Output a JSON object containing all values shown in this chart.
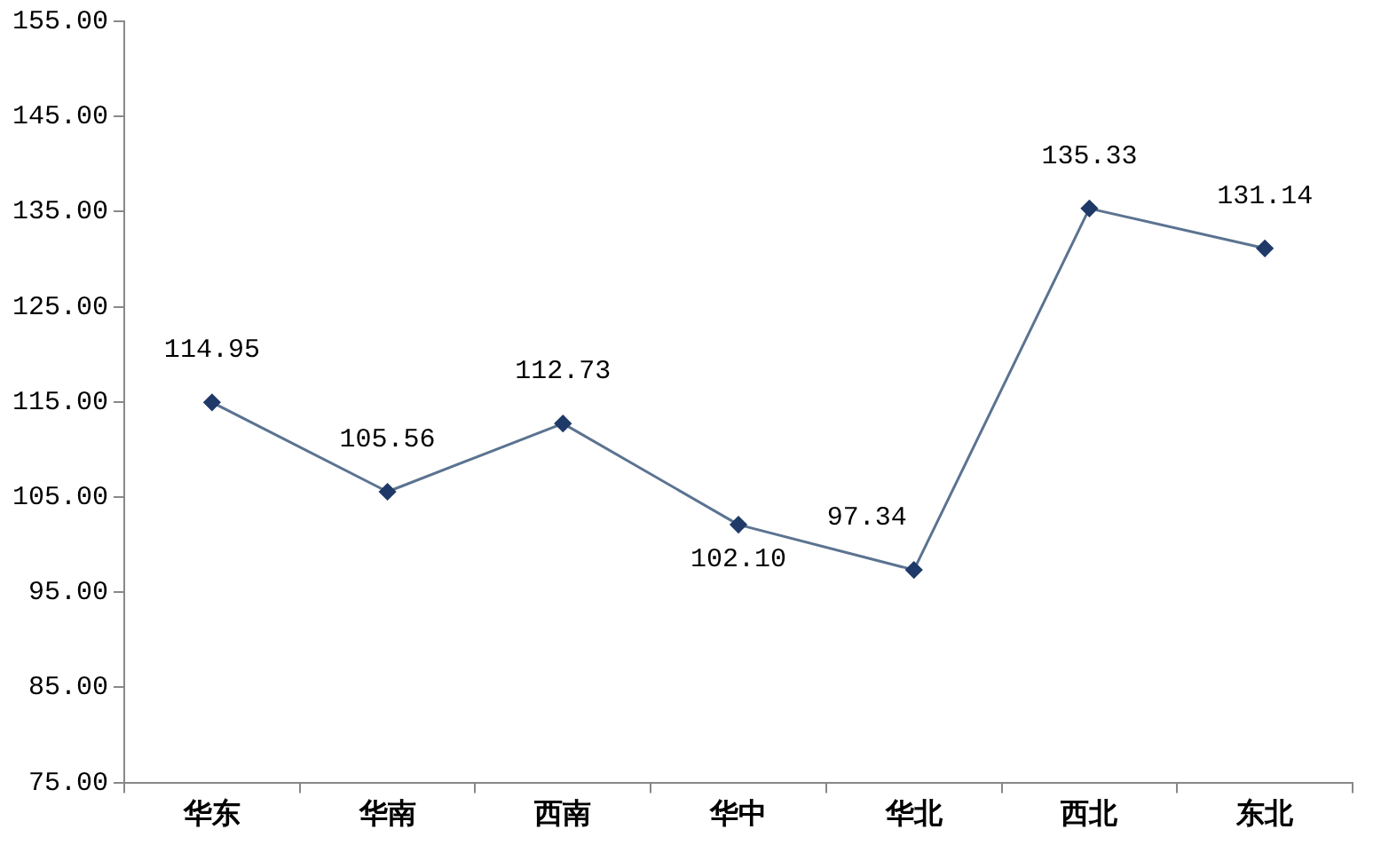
{
  "chart_data": {
    "type": "line",
    "categories": [
      "华东",
      "华南",
      "西南",
      "华中",
      "华北",
      "西北",
      "东北"
    ],
    "series": [
      {
        "color": "#5b7391",
        "values": [
          114.95,
          105.56,
          112.73,
          102.1,
          97.34,
          135.33,
          131.14
        ]
      }
    ],
    "ylim": [
      75,
      155
    ],
    "yticks": [
      {
        "value": 75,
        "label": "75.00"
      },
      {
        "value": 85,
        "label": "85.00"
      },
      {
        "value": 95,
        "label": "95.00"
      },
      {
        "value": 105,
        "label": "105.00"
      },
      {
        "value": 115,
        "label": "115.00"
      },
      {
        "value": 125,
        "label": "125.00"
      },
      {
        "value": 135,
        "label": "135.00"
      },
      {
        "value": 145,
        "label": "145.00"
      },
      {
        "value": 155,
        "label": "155.00"
      }
    ],
    "value_labels": [
      "114.95",
      "105.56",
      "112.73",
      "102.10",
      "97.34",
      "135.33",
      "131.14"
    ],
    "marker": "diamond",
    "grid": false,
    "legend": false
  }
}
